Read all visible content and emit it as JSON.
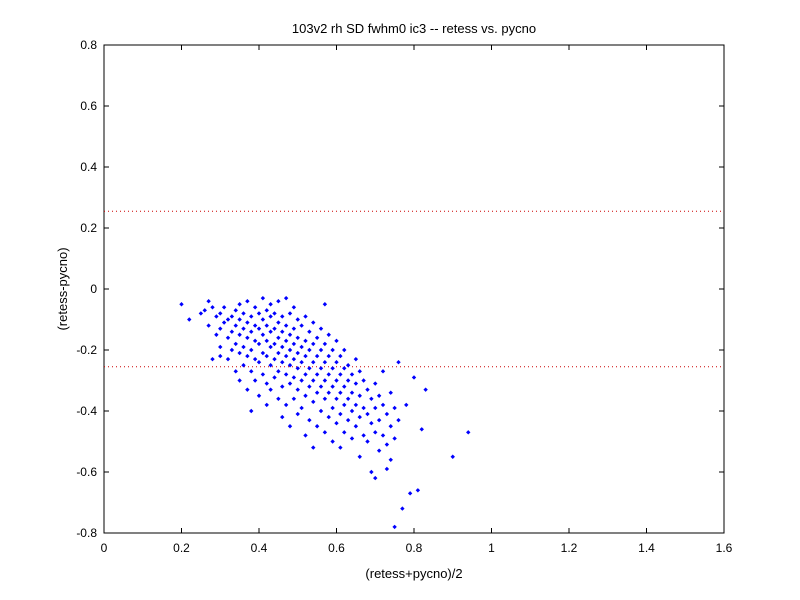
{
  "chart_data": {
    "type": "scatter",
    "title": "103v2 rh SD fwhm0 ic3 -- retess vs. pycno",
    "xlabel": "(retess+pycno)/2",
    "ylabel": "(retess-pycno)",
    "xlim": [
      0,
      1.6
    ],
    "ylim": [
      -0.8,
      0.8
    ],
    "xticks": [
      0,
      0.2,
      0.4,
      0.6,
      0.8,
      1,
      1.2,
      1.4,
      1.6
    ],
    "yticks": [
      -0.8,
      -0.6,
      -0.4,
      -0.2,
      0,
      0.2,
      0.4,
      0.6,
      0.8
    ],
    "xtick_labels": [
      "0",
      "0.2",
      "0.4",
      "0.6",
      "0.8",
      "1",
      "1.2",
      "1.4",
      "1.6"
    ],
    "ytick_labels": [
      "-0.8",
      "-0.6",
      "-0.4",
      "-0.2",
      "0",
      "0.2",
      "0.4",
      "0.6",
      "0.8"
    ],
    "grid": false,
    "marker_color": "#0000ff",
    "reference_line_color": "#cc0000",
    "reference_lines_y": [
      0.255,
      -0.255
    ],
    "series": [
      {
        "points": [
          [
            0.2,
            -0.05
          ],
          [
            0.22,
            -0.1
          ],
          [
            0.25,
            -0.08
          ],
          [
            0.26,
            -0.07
          ],
          [
            0.27,
            -0.04
          ],
          [
            0.27,
            -0.12
          ],
          [
            0.28,
            -0.06
          ],
          [
            0.28,
            -0.23
          ],
          [
            0.29,
            -0.09
          ],
          [
            0.29,
            -0.15
          ],
          [
            0.3,
            -0.08
          ],
          [
            0.3,
            -0.13
          ],
          [
            0.3,
            -0.19
          ],
          [
            0.3,
            -0.22
          ],
          [
            0.31,
            -0.06
          ],
          [
            0.31,
            -0.11
          ],
          [
            0.32,
            -0.1
          ],
          [
            0.32,
            -0.16
          ],
          [
            0.32,
            -0.23
          ],
          [
            0.33,
            -0.09
          ],
          [
            0.33,
            -0.14
          ],
          [
            0.33,
            -0.2
          ],
          [
            0.34,
            -0.07
          ],
          [
            0.34,
            -0.12
          ],
          [
            0.34,
            -0.18
          ],
          [
            0.34,
            -0.27
          ],
          [
            0.35,
            -0.05
          ],
          [
            0.35,
            -0.1
          ],
          [
            0.35,
            -0.15
          ],
          [
            0.35,
            -0.21
          ],
          [
            0.35,
            -0.3
          ],
          [
            0.36,
            -0.08
          ],
          [
            0.36,
            -0.13
          ],
          [
            0.36,
            -0.19
          ],
          [
            0.36,
            -0.25
          ],
          [
            0.37,
            -0.04
          ],
          [
            0.37,
            -0.11
          ],
          [
            0.37,
            -0.16
          ],
          [
            0.37,
            -0.22
          ],
          [
            0.37,
            -0.33
          ],
          [
            0.38,
            -0.09
          ],
          [
            0.38,
            -0.14
          ],
          [
            0.38,
            -0.2
          ],
          [
            0.38,
            -0.27
          ],
          [
            0.38,
            -0.4
          ],
          [
            0.39,
            -0.06
          ],
          [
            0.39,
            -0.12
          ],
          [
            0.39,
            -0.17
          ],
          [
            0.39,
            -0.23
          ],
          [
            0.39,
            -0.3
          ],
          [
            0.4,
            -0.08
          ],
          [
            0.4,
            -0.13
          ],
          [
            0.4,
            -0.18
          ],
          [
            0.4,
            -0.24
          ],
          [
            0.4,
            -0.35
          ],
          [
            0.41,
            -0.03
          ],
          [
            0.41,
            -0.1
          ],
          [
            0.41,
            -0.15
          ],
          [
            0.41,
            -0.21
          ],
          [
            0.41,
            -0.28
          ],
          [
            0.42,
            -0.07
          ],
          [
            0.42,
            -0.12
          ],
          [
            0.42,
            -0.17
          ],
          [
            0.42,
            -0.22
          ],
          [
            0.42,
            -0.31
          ],
          [
            0.42,
            -0.38
          ],
          [
            0.43,
            -0.05
          ],
          [
            0.43,
            -0.09
          ],
          [
            0.43,
            -0.14
          ],
          [
            0.43,
            -0.19
          ],
          [
            0.43,
            -0.25
          ],
          [
            0.43,
            -0.33
          ],
          [
            0.44,
            -0.08
          ],
          [
            0.44,
            -0.13
          ],
          [
            0.44,
            -0.18
          ],
          [
            0.44,
            -0.23
          ],
          [
            0.44,
            -0.29
          ],
          [
            0.45,
            -0.04
          ],
          [
            0.45,
            -0.11
          ],
          [
            0.45,
            -0.16
          ],
          [
            0.45,
            -0.21
          ],
          [
            0.45,
            -0.27
          ],
          [
            0.45,
            -0.36
          ],
          [
            0.46,
            -0.09
          ],
          [
            0.46,
            -0.14
          ],
          [
            0.46,
            -0.19
          ],
          [
            0.46,
            -0.24
          ],
          [
            0.46,
            -0.32
          ],
          [
            0.46,
            -0.42
          ],
          [
            0.47,
            -0.03
          ],
          [
            0.47,
            -0.12
          ],
          [
            0.47,
            -0.17
          ],
          [
            0.47,
            -0.22
          ],
          [
            0.47,
            -0.28
          ],
          [
            0.47,
            -0.38
          ],
          [
            0.48,
            -0.08
          ],
          [
            0.48,
            -0.15
          ],
          [
            0.48,
            -0.2
          ],
          [
            0.48,
            -0.25
          ],
          [
            0.48,
            -0.31
          ],
          [
            0.48,
            -0.45
          ],
          [
            0.49,
            -0.06
          ],
          [
            0.49,
            -0.13
          ],
          [
            0.49,
            -0.18
          ],
          [
            0.49,
            -0.23
          ],
          [
            0.49,
            -0.29
          ],
          [
            0.49,
            -0.36
          ],
          [
            0.5,
            -0.1
          ],
          [
            0.5,
            -0.16
          ],
          [
            0.5,
            -0.21
          ],
          [
            0.5,
            -0.26
          ],
          [
            0.5,
            -0.33
          ],
          [
            0.5,
            -0.41
          ],
          [
            0.51,
            -0.12
          ],
          [
            0.51,
            -0.19
          ],
          [
            0.51,
            -0.24
          ],
          [
            0.51,
            -0.3
          ],
          [
            0.51,
            -0.39
          ],
          [
            0.52,
            -0.09
          ],
          [
            0.52,
            -0.17
          ],
          [
            0.52,
            -0.22
          ],
          [
            0.52,
            -0.28
          ],
          [
            0.52,
            -0.35
          ],
          [
            0.52,
            -0.48
          ],
          [
            0.53,
            -0.14
          ],
          [
            0.53,
            -0.2
          ],
          [
            0.53,
            -0.26
          ],
          [
            0.53,
            -0.32
          ],
          [
            0.53,
            -0.43
          ],
          [
            0.54,
            -0.11
          ],
          [
            0.54,
            -0.18
          ],
          [
            0.54,
            -0.24
          ],
          [
            0.54,
            -0.3
          ],
          [
            0.54,
            -0.37
          ],
          [
            0.54,
            -0.52
          ],
          [
            0.55,
            -0.16
          ],
          [
            0.55,
            -0.22
          ],
          [
            0.55,
            -0.28
          ],
          [
            0.55,
            -0.34
          ],
          [
            0.55,
            -0.45
          ],
          [
            0.56,
            -0.13
          ],
          [
            0.56,
            -0.2
          ],
          [
            0.56,
            -0.26
          ],
          [
            0.56,
            -0.32
          ],
          [
            0.56,
            -0.4
          ],
          [
            0.57,
            -0.05
          ],
          [
            0.57,
            -0.18
          ],
          [
            0.57,
            -0.24
          ],
          [
            0.57,
            -0.3
          ],
          [
            0.57,
            -0.36
          ],
          [
            0.57,
            -0.47
          ],
          [
            0.58,
            -0.15
          ],
          [
            0.58,
            -0.22
          ],
          [
            0.58,
            -0.28
          ],
          [
            0.58,
            -0.34
          ],
          [
            0.58,
            -0.42
          ],
          [
            0.59,
            -0.2
          ],
          [
            0.59,
            -0.26
          ],
          [
            0.59,
            -0.32
          ],
          [
            0.59,
            -0.39
          ],
          [
            0.59,
            -0.5
          ],
          [
            0.6,
            -0.17
          ],
          [
            0.6,
            -0.24
          ],
          [
            0.6,
            -0.3
          ],
          [
            0.6,
            -0.36
          ],
          [
            0.6,
            -0.44
          ],
          [
            0.61,
            -0.22
          ],
          [
            0.61,
            -0.28
          ],
          [
            0.61,
            -0.34
          ],
          [
            0.61,
            -0.41
          ],
          [
            0.61,
            -0.52
          ],
          [
            0.62,
            -0.2
          ],
          [
            0.62,
            -0.26
          ],
          [
            0.62,
            -0.32
          ],
          [
            0.62,
            -0.38
          ],
          [
            0.62,
            -0.47
          ],
          [
            0.63,
            -0.25
          ],
          [
            0.63,
            -0.3
          ],
          [
            0.63,
            -0.36
          ],
          [
            0.63,
            -0.43
          ],
          [
            0.64,
            -0.28
          ],
          [
            0.64,
            -0.34
          ],
          [
            0.64,
            -0.4
          ],
          [
            0.64,
            -0.49
          ],
          [
            0.65,
            -0.23
          ],
          [
            0.65,
            -0.31
          ],
          [
            0.65,
            -0.38
          ],
          [
            0.65,
            -0.45
          ],
          [
            0.66,
            -0.27
          ],
          [
            0.66,
            -0.35
          ],
          [
            0.66,
            -0.42
          ],
          [
            0.66,
            -0.55
          ],
          [
            0.67,
            -0.3
          ],
          [
            0.67,
            -0.39
          ],
          [
            0.67,
            -0.48
          ],
          [
            0.68,
            -0.33
          ],
          [
            0.68,
            -0.41
          ],
          [
            0.68,
            -0.5
          ],
          [
            0.69,
            -0.36
          ],
          [
            0.69,
            -0.44
          ],
          [
            0.69,
            -0.6
          ],
          [
            0.7,
            -0.31
          ],
          [
            0.7,
            -0.39
          ],
          [
            0.7,
            -0.47
          ],
          [
            0.7,
            -0.62
          ],
          [
            0.71,
            -0.35
          ],
          [
            0.71,
            -0.43
          ],
          [
            0.71,
            -0.53
          ],
          [
            0.72,
            -0.27
          ],
          [
            0.72,
            -0.38
          ],
          [
            0.72,
            -0.48
          ],
          [
            0.73,
            -0.41
          ],
          [
            0.73,
            -0.51
          ],
          [
            0.73,
            -0.59
          ],
          [
            0.74,
            -0.34
          ],
          [
            0.74,
            -0.45
          ],
          [
            0.74,
            -0.56
          ],
          [
            0.75,
            -0.39
          ],
          [
            0.75,
            -0.49
          ],
          [
            0.75,
            -0.78
          ],
          [
            0.76,
            -0.24
          ],
          [
            0.76,
            -0.43
          ],
          [
            0.77,
            -0.72
          ],
          [
            0.78,
            -0.38
          ],
          [
            0.79,
            -0.67
          ],
          [
            0.8,
            -0.29
          ],
          [
            0.81,
            -0.66
          ],
          [
            0.82,
            -0.46
          ],
          [
            0.83,
            -0.33
          ],
          [
            0.9,
            -0.55
          ],
          [
            0.94,
            -0.47
          ]
        ]
      }
    ]
  }
}
